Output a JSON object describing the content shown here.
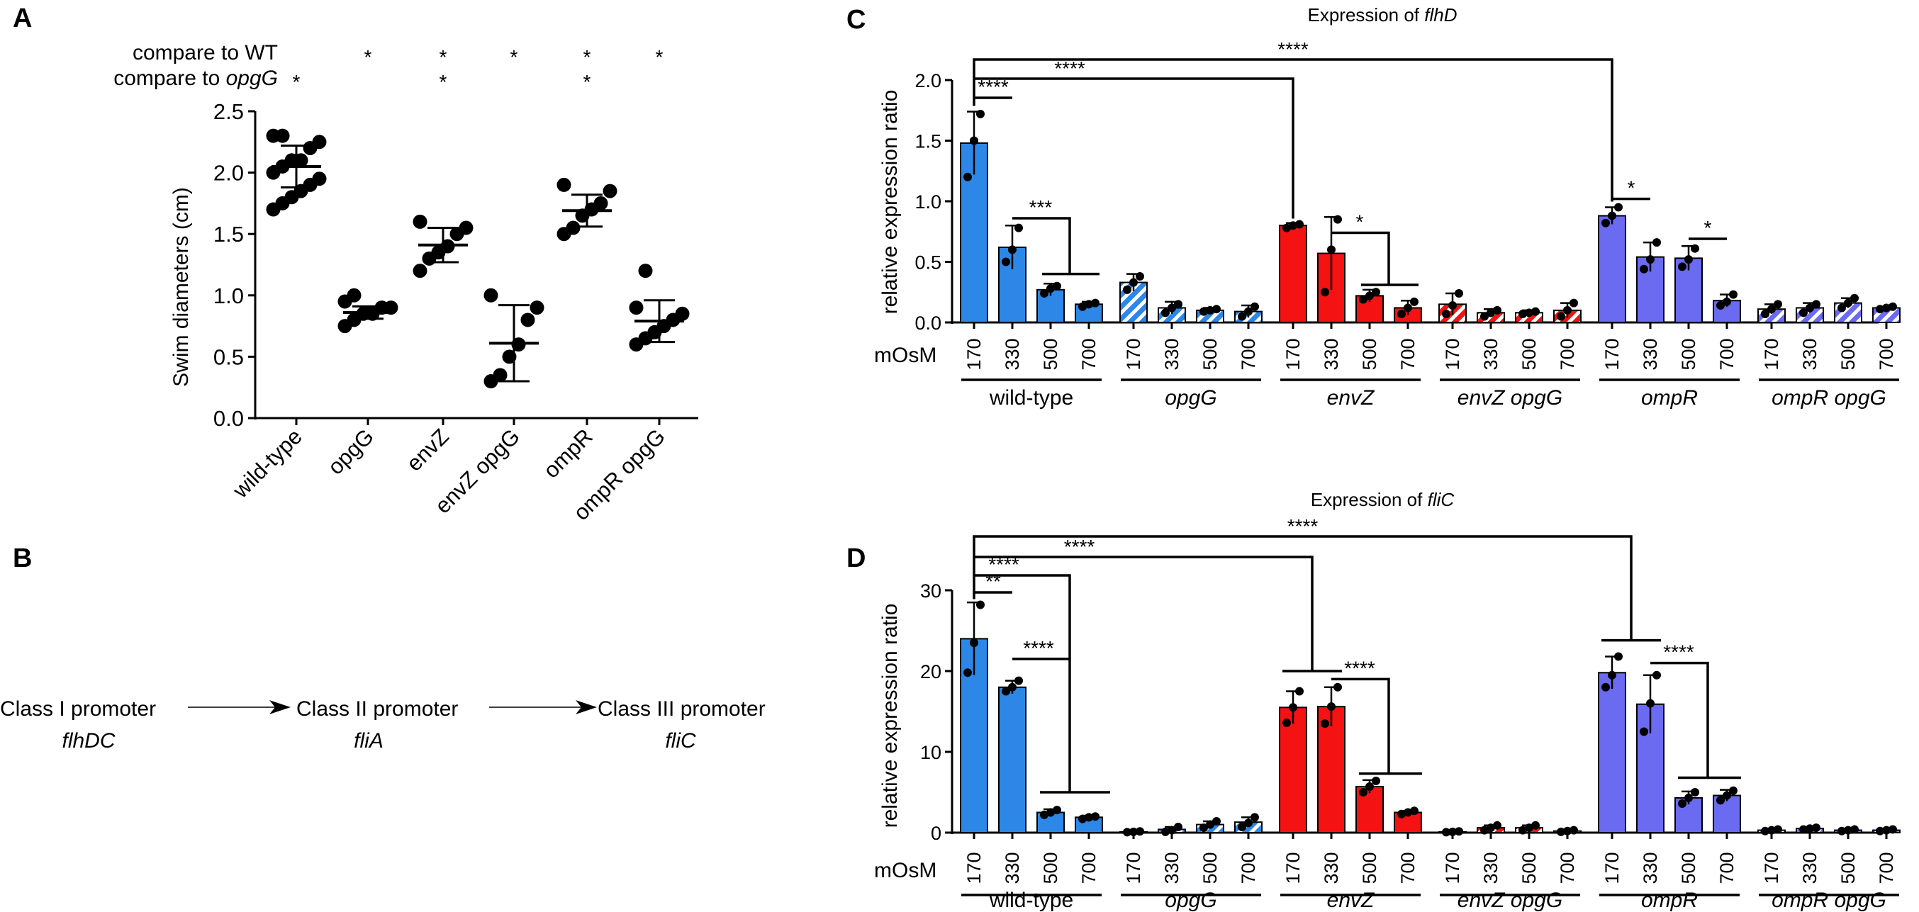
{
  "panels": {
    "A": "A",
    "B": "B",
    "C": "C",
    "D": "D"
  },
  "panelA": {
    "compare_wt_label": "compare to WT",
    "compare_opgg_prefix": "compare to ",
    "compare_opgg_gene": "opgG",
    "ylabel": "Swim diameters (cm)",
    "strains": [
      "wild-type",
      "opgG",
      "envZ",
      "envZ opgG",
      "ompR",
      "ompR opgG"
    ],
    "sig_vs_wt": [
      "",
      "*",
      "*",
      "*",
      "*",
      "*"
    ],
    "sig_vs_opgg": [
      "*",
      "",
      "*",
      "",
      "*",
      ""
    ]
  },
  "panelB": {
    "steps": [
      {
        "class": "Class I promoter",
        "gene": "flhDC"
      },
      {
        "class": "Class II promoter",
        "gene": "fliA"
      },
      {
        "class": "Class III promoter",
        "gene": "fliC"
      }
    ]
  },
  "panelC": {
    "title_prefix": "Expression of ",
    "title_gene": "flhD"
  },
  "panelD": {
    "title_prefix": "Expression of ",
    "title_gene": "fliC"
  },
  "shared": {
    "ylabel": "relative expression ratio",
    "xlabel": "mOsM",
    "osm": [
      "170",
      "330",
      "500",
      "700"
    ],
    "groups": [
      {
        "name": "wild-type",
        "italic": false
      },
      {
        "name": "opgG",
        "italic": true
      },
      {
        "name": "envZ",
        "italic": true
      },
      {
        "name": "envZ opgG",
        "italic": true
      },
      {
        "name": "ompR",
        "italic": true
      },
      {
        "name": "ompR opgG",
        "italic": true
      }
    ],
    "colors": {
      "wild-type": "#2d87e6",
      "envZ": "#f51212",
      "ompR": "#6b6bf2"
    }
  },
  "chart_data": [
    {
      "id": "A",
      "type": "scatter",
      "title": "",
      "xlabel": "",
      "ylabel": "Swim diameters (cm)",
      "ylim": [
        0,
        2.5
      ],
      "yticks": [
        "0.0",
        "0.5",
        "1.0",
        "1.5",
        "2.0",
        "2.5"
      ],
      "categories": [
        "wild-type",
        "opgG",
        "envZ",
        "envZ opgG",
        "ompR",
        "ompR opgG"
      ],
      "means": [
        2.05,
        0.86,
        1.41,
        0.61,
        1.69,
        0.79
      ],
      "sd": [
        0.17,
        0.05,
        0.14,
        0.31,
        0.13,
        0.17
      ],
      "points": [
        [
          1.7,
          1.75,
          1.8,
          1.85,
          1.9,
          1.95,
          2.0,
          2.05,
          2.1,
          2.1,
          2.2,
          2.25,
          2.3,
          2.3
        ],
        [
          0.75,
          0.8,
          0.85,
          0.85,
          0.9,
          0.9,
          0.95,
          1.0
        ],
        [
          1.2,
          1.3,
          1.35,
          1.4,
          1.5,
          1.55,
          1.6
        ],
        [
          0.3,
          0.35,
          0.5,
          0.6,
          0.8,
          0.9,
          1.0
        ],
        [
          1.5,
          1.55,
          1.65,
          1.7,
          1.75,
          1.85,
          1.9
        ],
        [
          0.6,
          0.65,
          0.7,
          0.75,
          0.8,
          0.85,
          0.9,
          1.2
        ]
      ]
    },
    {
      "id": "C",
      "type": "bar",
      "title": "Expression of flhD",
      "xlabel": "mOsM",
      "ylabel": "relative expression ratio",
      "ylim": [
        0,
        2.0
      ],
      "yticks": [
        "0.0",
        "0.5",
        "1.0",
        "1.5",
        "2.0"
      ],
      "categories": [
        "170",
        "330",
        "500",
        "700"
      ],
      "series": [
        {
          "name": "wild-type",
          "values": [
            1.48,
            0.62,
            0.27,
            0.15
          ],
          "sd": [
            0.26,
            0.18,
            0.05,
            0.02
          ],
          "points": [
            [
              1.2,
              1.5,
              1.72
            ],
            [
              0.5,
              0.6,
              0.78
            ],
            [
              0.24,
              0.28,
              0.3
            ],
            [
              0.13,
              0.15,
              0.16
            ]
          ]
        },
        {
          "name": "opgG",
          "values": [
            0.33,
            0.12,
            0.1,
            0.09
          ],
          "sd": [
            0.07,
            0.05,
            0.02,
            0.05
          ],
          "points": [
            [
              0.27,
              0.33,
              0.38
            ],
            [
              0.08,
              0.12,
              0.15
            ],
            [
              0.09,
              0.1,
              0.11
            ],
            [
              0.05,
              0.09,
              0.13
            ]
          ]
        },
        {
          "name": "envZ",
          "values": [
            0.8,
            0.57,
            0.22,
            0.12
          ],
          "sd": [
            0.02,
            0.3,
            0.05,
            0.06
          ],
          "points": [
            [
              0.78,
              0.8,
              0.81
            ],
            [
              0.25,
              0.6,
              0.85
            ],
            [
              0.19,
              0.22,
              0.25
            ],
            [
              0.07,
              0.12,
              0.17
            ]
          ]
        },
        {
          "name": "envZ opgG",
          "values": [
            0.15,
            0.08,
            0.08,
            0.1
          ],
          "sd": [
            0.09,
            0.03,
            0.02,
            0.06
          ],
          "points": [
            [
              0.07,
              0.14,
              0.24
            ],
            [
              0.05,
              0.08,
              0.1
            ],
            [
              0.07,
              0.08,
              0.09
            ],
            [
              0.05,
              0.1,
              0.16
            ]
          ]
        },
        {
          "name": "ompR",
          "values": [
            0.88,
            0.54,
            0.53,
            0.18
          ],
          "sd": [
            0.07,
            0.12,
            0.1,
            0.05
          ],
          "points": [
            [
              0.82,
              0.88,
              0.95
            ],
            [
              0.44,
              0.52,
              0.66
            ],
            [
              0.46,
              0.52,
              0.61
            ],
            [
              0.14,
              0.17,
              0.23
            ]
          ]
        },
        {
          "name": "ompR opgG",
          "values": [
            0.11,
            0.12,
            0.16,
            0.12
          ],
          "sd": [
            0.04,
            0.04,
            0.04,
            0.01
          ],
          "points": [
            [
              0.07,
              0.11,
              0.15
            ],
            [
              0.08,
              0.12,
              0.15
            ],
            [
              0.12,
              0.16,
              0.2
            ],
            [
              0.11,
              0.12,
              0.13
            ]
          ]
        }
      ],
      "annotations": [
        "****",
        "****",
        "****",
        "***",
        "*",
        "*",
        "*"
      ]
    },
    {
      "id": "D",
      "type": "bar",
      "title": "Expression of fliC",
      "xlabel": "mOsM",
      "ylabel": "relative expression ratio",
      "ylim": [
        0,
        30
      ],
      "yticks": [
        "0",
        "10",
        "20",
        "30"
      ],
      "categories": [
        "170",
        "330",
        "500",
        "700"
      ],
      "series": [
        {
          "name": "wild-type",
          "values": [
            24.0,
            18.0,
            2.5,
            1.9
          ],
          "sd": [
            4.5,
            0.8,
            0.4,
            0.2
          ],
          "points": [
            [
              19.8,
              23.5,
              28.2
            ],
            [
              17.5,
              18.0,
              18.8
            ],
            [
              2.2,
              2.5,
              2.8
            ],
            [
              1.7,
              1.9,
              2.0
            ]
          ]
        },
        {
          "name": "opgG",
          "values": [
            0.1,
            0.4,
            1.0,
            1.3
          ],
          "sd": [
            0.05,
            0.3,
            0.4,
            0.6
          ],
          "points": [
            [
              0.05,
              0.1,
              0.15
            ],
            [
              0.1,
              0.3,
              0.7
            ],
            [
              0.6,
              1.0,
              1.4
            ],
            [
              0.7,
              1.2,
              1.9
            ]
          ]
        },
        {
          "name": "envZ",
          "values": [
            15.5,
            15.6,
            5.7,
            2.5
          ],
          "sd": [
            2.0,
            2.4,
            0.8,
            0.2
          ],
          "points": [
            [
              13.6,
              15.5,
              17.5
            ],
            [
              13.5,
              15.6,
              18.0
            ],
            [
              5.0,
              5.7,
              6.4
            ],
            [
              2.3,
              2.5,
              2.7
            ]
          ]
        },
        {
          "name": "envZ opgG",
          "values": [
            0.1,
            0.6,
            0.6,
            0.2
          ],
          "sd": [
            0.05,
            0.3,
            0.3,
            0.1
          ],
          "points": [
            [
              0.05,
              0.1,
              0.15
            ],
            [
              0.3,
              0.6,
              0.9
            ],
            [
              0.3,
              0.6,
              0.9
            ],
            [
              0.1,
              0.2,
              0.3
            ]
          ]
        },
        {
          "name": "ompR",
          "values": [
            19.8,
            15.9,
            4.3,
            4.6
          ],
          "sd": [
            2.0,
            3.6,
            0.8,
            0.7
          ],
          "points": [
            [
              18.0,
              19.5,
              21.8
            ],
            [
              12.5,
              16.0,
              19.5
            ],
            [
              3.6,
              4.3,
              5.0
            ],
            [
              4.0,
              4.6,
              5.2
            ]
          ]
        },
        {
          "name": "ompR opgG",
          "values": [
            0.3,
            0.5,
            0.3,
            0.3
          ],
          "sd": [
            0.1,
            0.1,
            0.1,
            0.1
          ],
          "points": [
            [
              0.2,
              0.3,
              0.4
            ],
            [
              0.4,
              0.5,
              0.6
            ],
            [
              0.2,
              0.3,
              0.4
            ],
            [
              0.2,
              0.3,
              0.4
            ]
          ]
        }
      ],
      "annotations": [
        "****",
        "****",
        "****",
        "**",
        "****",
        "****",
        "****"
      ]
    }
  ]
}
